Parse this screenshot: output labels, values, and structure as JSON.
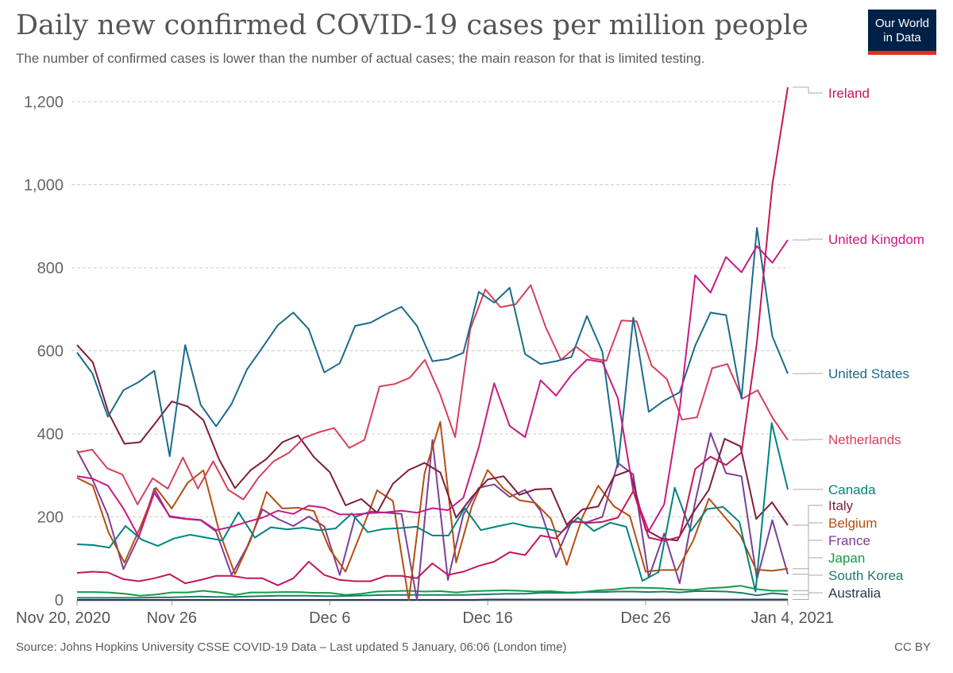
{
  "header": {
    "title": "Daily new confirmed COVID-19 cases per million people",
    "subtitle": "The number of confirmed cases is lower than the number of actual cases; the main reason for that is limited testing."
  },
  "logo": {
    "line1": "Our World",
    "line2": "in Data",
    "bg_color": "#002147",
    "accent_color": "#dc2f2f"
  },
  "footer": {
    "source": "Source: Johns Hopkins University CSSE COVID-19 Data – Last updated 5 January, 06:06 (London time)",
    "license": "CC BY"
  },
  "chart_data": {
    "type": "line",
    "x_start": "2020-11-20",
    "x_end": "2021-01-04",
    "x_tick_labels": [
      "Nov 20, 2020",
      "Nov 26",
      "Dec 6",
      "Dec 16",
      "Dec 26",
      "Jan 4, 2021"
    ],
    "x_tick_days": [
      0,
      6,
      16,
      26,
      36,
      45
    ],
    "ylim": [
      0,
      1250
    ],
    "y_ticks": [
      0,
      200,
      400,
      600,
      800,
      1000,
      1200
    ],
    "y_tick_labels": [
      "0",
      "200",
      "400",
      "600",
      "800",
      "1,000",
      "1,200"
    ],
    "grid": true,
    "legend": "right-end-labels",
    "series": [
      {
        "name": "Ireland",
        "color": "#c2185b",
        "values": [
          65,
          68,
          66,
          50,
          45,
          52,
          62,
          40,
          48,
          58,
          58,
          52,
          52,
          35,
          52,
          92,
          60,
          48,
          45,
          45,
          58,
          58,
          52,
          88,
          60,
          68,
          82,
          92,
          115,
          108,
          155,
          148,
          190,
          185,
          188,
          198,
          262,
          150,
          142,
          152,
          315,
          345,
          325,
          355,
          620,
          1000,
          1235
        ]
      },
      {
        "name": "United Kingdom",
        "color": "#c81a87",
        "values": [
          298,
          292,
          275,
          220,
          152,
          258,
          202,
          196,
          193,
          168,
          176,
          188,
          198,
          215,
          207,
          227,
          222,
          206,
          206,
          209,
          211,
          215,
          210,
          221,
          216,
          246,
          368,
          522,
          419,
          392,
          529,
          492,
          542,
          579,
          573,
          486,
          262,
          166,
          230,
          460,
          782,
          740,
          826,
          789,
          852,
          812,
          867
        ]
      },
      {
        "name": "United States",
        "color": "#1b6b8a",
        "values": [
          596,
          545,
          441,
          505,
          525,
          552,
          346,
          614,
          470,
          418,
          472,
          555,
          608,
          662,
          692,
          652,
          548,
          570,
          660,
          668,
          688,
          706,
          660,
          575,
          580,
          595,
          742,
          716,
          752,
          592,
          568,
          575,
          585,
          684,
          598,
          320,
          680,
          453,
          480,
          500,
          612,
          692,
          686,
          485,
          896,
          635,
          545
        ]
      },
      {
        "name": "Netherlands",
        "color": "#d6405c",
        "values": [
          355,
          362,
          317,
          302,
          230,
          293,
          268,
          343,
          268,
          334,
          265,
          242,
          295,
          334,
          354,
          390,
          404,
          414,
          366,
          385,
          514,
          520,
          535,
          578,
          496,
          392,
          652,
          748,
          705,
          712,
          758,
          656,
          578,
          610,
          582,
          576,
          673,
          671,
          564,
          532,
          434,
          440,
          558,
          568,
          485,
          505,
          438,
          385
        ]
      },
      {
        "name": "Canada",
        "color": "#00847e",
        "values": [
          134,
          132,
          126,
          178,
          145,
          130,
          148,
          157,
          150,
          143,
          211,
          150,
          175,
          170,
          174,
          168,
          172,
          208,
          163,
          171,
          173,
          176,
          155,
          155,
          221,
          168,
          177,
          185,
          176,
          172,
          163,
          198,
          166,
          186,
          176,
          46,
          67,
          270,
          166,
          219,
          224,
          188,
          20,
          426,
          266
        ]
      },
      {
        "name": "Italy",
        "color": "#7f1d3d",
        "values": [
          614,
          572,
          450,
          376,
          380,
          428,
          478,
          466,
          433,
          338,
          269,
          313,
          340,
          380,
          396,
          344,
          308,
          228,
          243,
          210,
          280,
          313,
          330,
          307,
          198,
          248,
          290,
          298,
          253,
          266,
          268,
          181,
          218,
          225,
          298,
          312,
          169,
          148,
          143,
          210,
          265,
          388,
          370,
          195,
          235,
          180
        ]
      },
      {
        "name": "Belgium",
        "color": "#b44e12",
        "values": [
          294,
          275,
          162,
          90,
          175,
          270,
          220,
          282,
          312,
          165,
          62,
          145,
          260,
          220,
          222,
          214,
          122,
          68,
          164,
          264,
          238,
          0,
          305,
          429,
          90,
          226,
          313,
          268,
          240,
          234,
          195,
          84,
          200,
          275,
          225,
          202,
          68,
          72,
          72,
          142,
          244,
          200,
          155,
          73,
          70,
          75
        ]
      },
      {
        "name": "France",
        "color": "#7e3e97",
        "values": [
          360,
          290,
          204,
          74,
          152,
          268,
          200,
          195,
          192,
          165,
          60,
          127,
          218,
          195,
          178,
          201,
          177,
          60,
          200,
          213,
          210,
          207,
          0,
          385,
          48,
          205,
          270,
          278,
          248,
          265,
          214,
          103,
          188,
          187,
          200,
          330,
          302,
          54,
          160,
          40,
          235,
          402,
          305,
          298,
          50,
          192,
          62
        ]
      },
      {
        "name": "Japan",
        "color": "#129b48",
        "values": [
          19,
          19,
          18,
          15,
          10,
          13,
          18,
          18,
          22,
          18,
          12,
          18,
          18,
          19,
          19,
          17,
          17,
          12,
          15,
          20,
          21,
          22,
          20,
          21,
          18,
          21,
          22,
          23,
          22,
          20,
          21,
          18,
          19,
          23,
          25,
          29,
          29,
          28,
          25,
          24,
          28,
          30,
          34,
          26,
          22,
          22
        ]
      },
      {
        "name": "South Korea",
        "color": "#1f7a6b",
        "values": [
          5,
          5,
          5,
          5,
          5,
          6,
          6,
          7,
          8,
          7,
          7,
          8,
          9,
          10,
          10,
          10,
          9,
          9,
          10,
          11,
          12,
          12,
          12,
          12,
          12,
          12,
          13,
          14,
          15,
          15,
          17,
          17,
          17,
          19,
          19,
          20,
          20,
          19,
          20,
          18,
          21,
          21,
          20,
          17,
          11,
          16,
          13
        ]
      },
      {
        "name": "Australia",
        "color": "#253c5a",
        "values": [
          0,
          0,
          0,
          0,
          0,
          0,
          0,
          0,
          0,
          0,
          0,
          0,
          0,
          0,
          0,
          0,
          0,
          0,
          0,
          0,
          0,
          0,
          0,
          0,
          0,
          0,
          1,
          1,
          1,
          1,
          1,
          1,
          1,
          1,
          1,
          1,
          1,
          1,
          1,
          1,
          1,
          1,
          1,
          1,
          1,
          1
        ]
      }
    ]
  }
}
